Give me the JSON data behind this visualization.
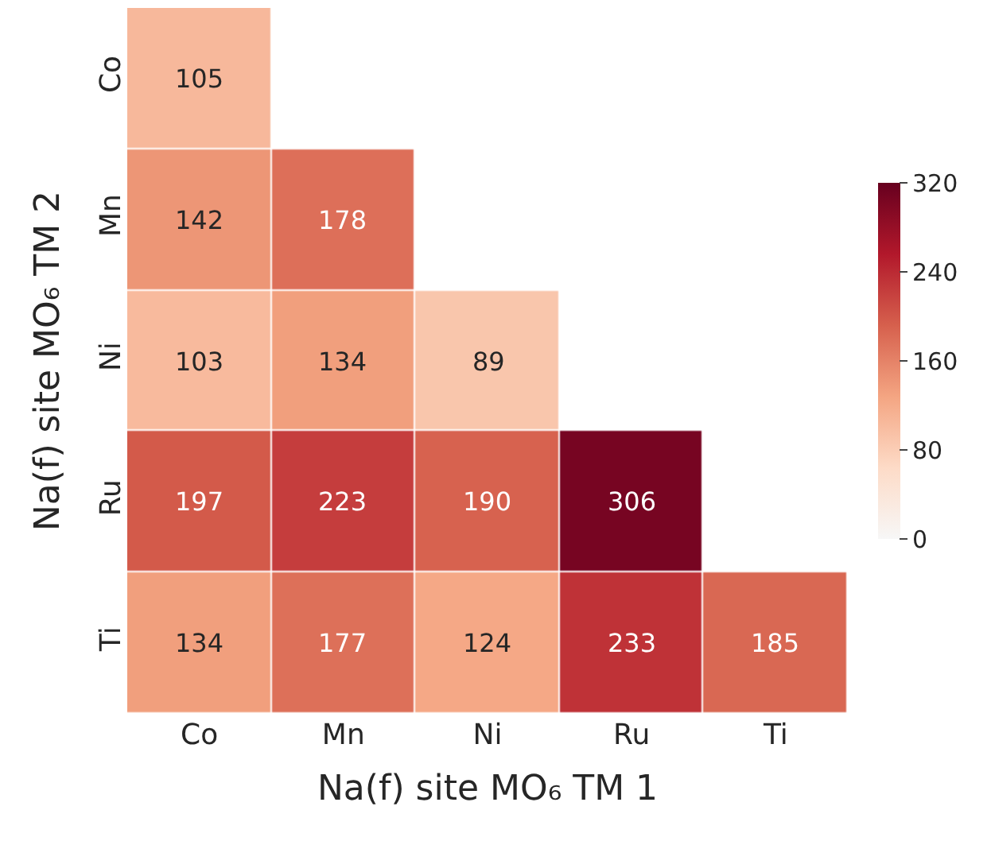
{
  "chart_data": {
    "type": "heatmap",
    "xlabel": "Na(f) site MO₆ TM 1",
    "ylabel": "Na(f) site MO₆ TM 2",
    "categories": [
      "Co",
      "Mn",
      "Ni",
      "Ru",
      "Ti"
    ],
    "y_categories": [
      "Co",
      "Mn",
      "Ni",
      "Ru",
      "Ti"
    ],
    "cells": [
      [
        105,
        null,
        null,
        null,
        null
      ],
      [
        142,
        178,
        null,
        null,
        null
      ],
      [
        103,
        134,
        89,
        null,
        null
      ],
      [
        197,
        223,
        190,
        306,
        null
      ],
      [
        134,
        177,
        124,
        233,
        185
      ]
    ],
    "clim": [
      0,
      320
    ],
    "cticks": [
      0,
      80,
      160,
      240,
      320
    ],
    "data_labels": true
  }
}
